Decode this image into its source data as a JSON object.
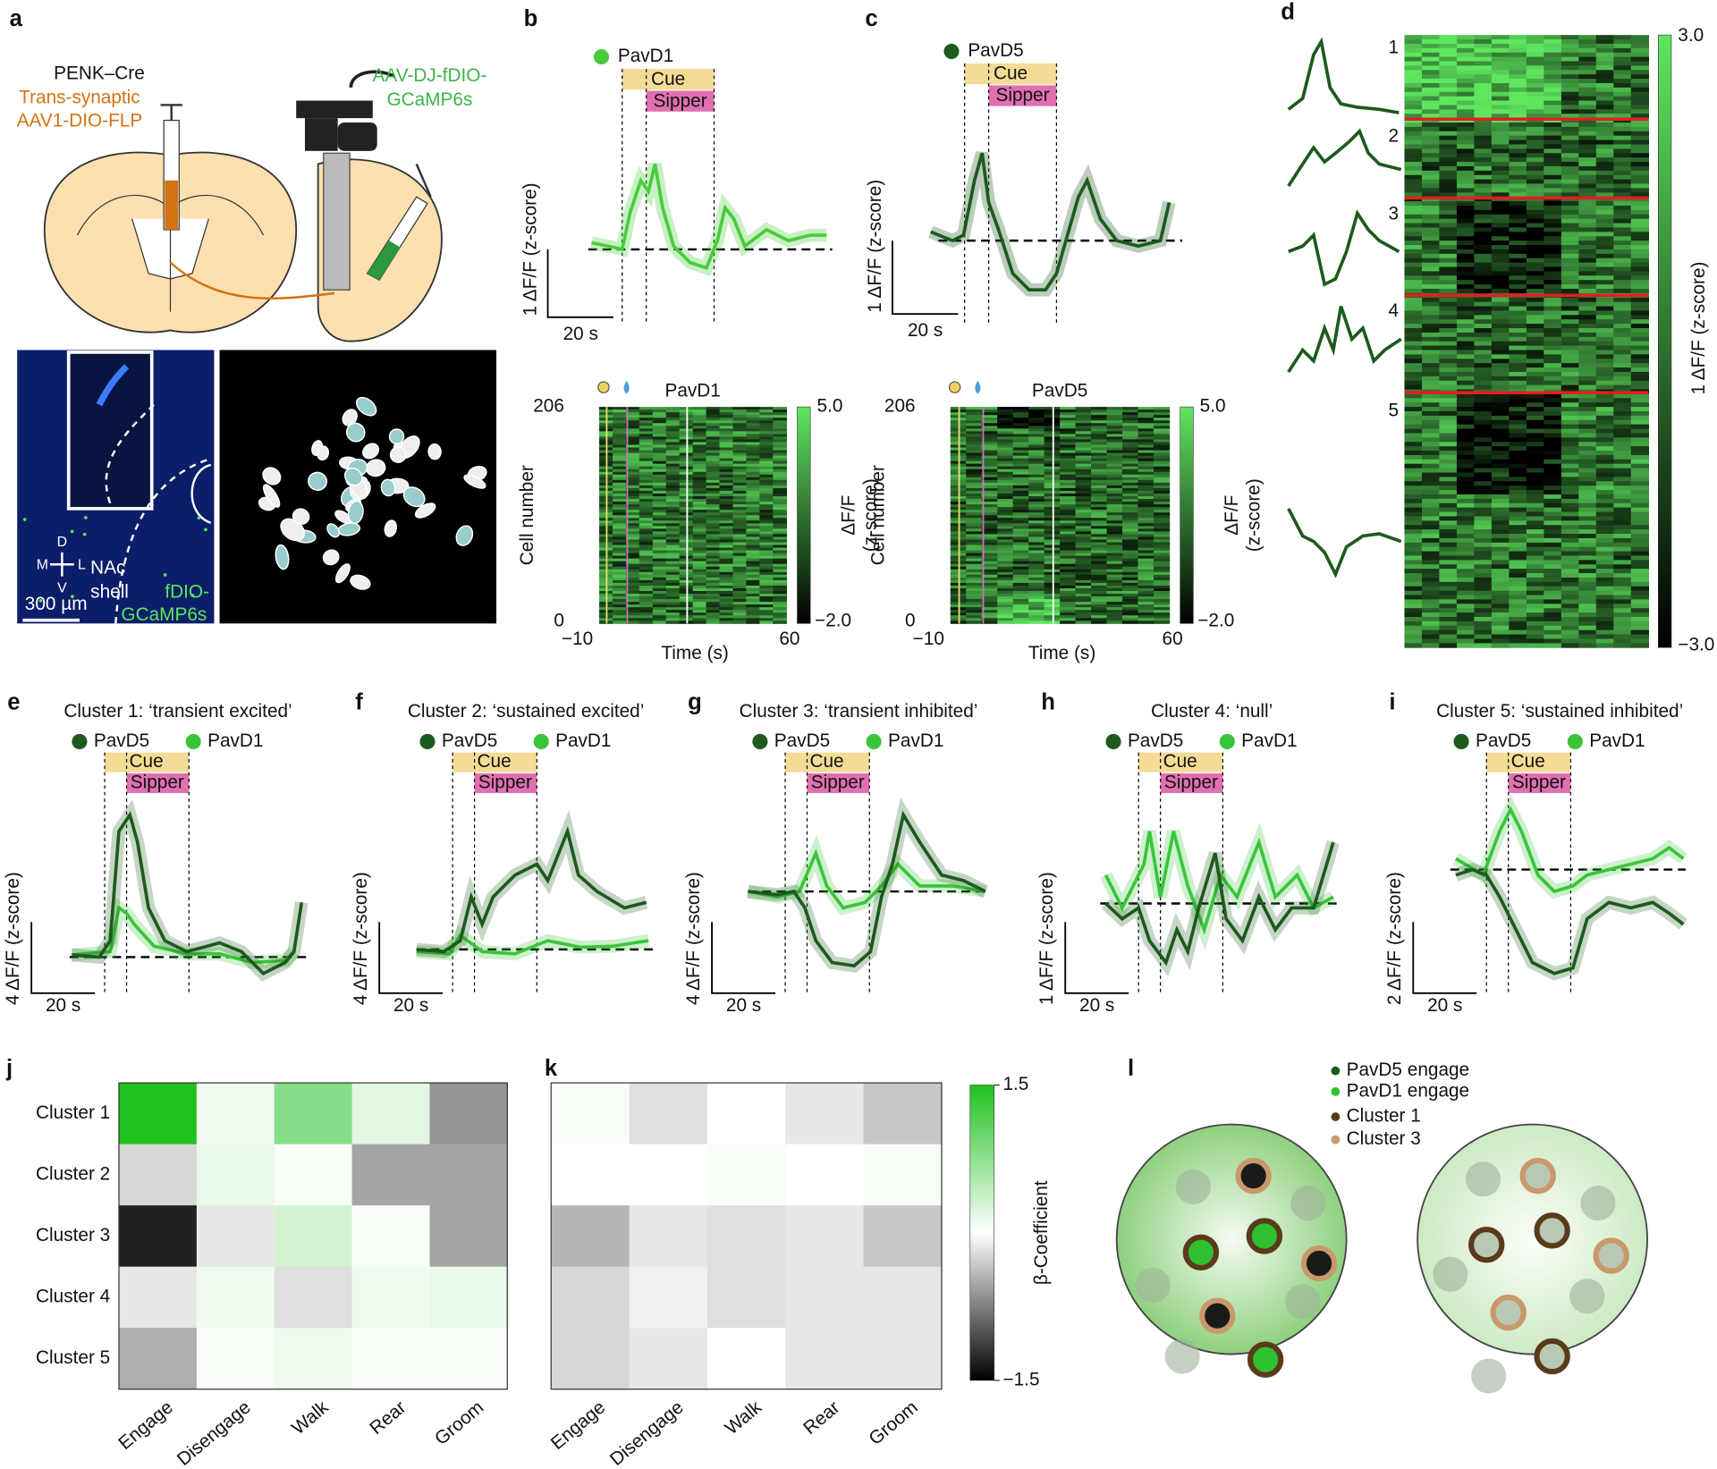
{
  "a": {
    "label": "a",
    "genotype": "PENK–Cre",
    "virus1": [
      "Trans-synaptic",
      "AAV1-DIO-FLP"
    ],
    "virus2": [
      "AAV-DJ-fDIO-",
      "GCaMP6s"
    ],
    "compass": {
      "dorsal": "D",
      "ventral": "V",
      "medial": "M",
      "lateral": "L"
    },
    "region": [
      "NAc",
      "shell"
    ],
    "expression": [
      "fDIO-",
      "GCaMP6s"
    ],
    "scale": "300 µm"
  },
  "b": {
    "label": "b",
    "legend": "PavD1",
    "cue": "Cue",
    "sipper": "Sipper",
    "y_scale": "1 ΔF/F (z-score)",
    "x_scale": "20 s",
    "heatmap": {
      "title": "PavD1",
      "ylabel": "Cell number",
      "yticks": [
        "206",
        "0"
      ],
      "xticks": [
        "−10",
        "60"
      ],
      "xlabel": "Time (s)",
      "colorbar_ticks": [
        "5.0",
        "−2.0"
      ],
      "colorbar_label": [
        "ΔF/F",
        "(z-score)"
      ]
    }
  },
  "c": {
    "label": "c",
    "legend": "PavD5",
    "cue": "Cue",
    "sipper": "Sipper",
    "y_scale": "1 ΔF/F (z-score)",
    "x_scale": "20 s",
    "heatmap": {
      "title": "PavD5",
      "ylabel": "Cell number",
      "yticks": [
        "206",
        "0"
      ],
      "xticks": [
        "−10",
        "60"
      ],
      "xlabel": "Time (s)",
      "colorbar_ticks": [
        "5.0",
        "−2.0"
      ],
      "colorbar_label": [
        "ΔF/F",
        "(z-score)"
      ]
    }
  },
  "d": {
    "label": "d",
    "clusters": [
      "1",
      "2",
      "3",
      "4",
      "5"
    ],
    "colorbar_ticks": [
      "3.0",
      "−3.0"
    ],
    "colorbar_label": "1 ΔF/F (z-score)"
  },
  "clusters": [
    {
      "label": "e",
      "title": "Cluster 1: ‘transient excited’",
      "legend": [
        "PavD5",
        "PavD1"
      ],
      "cue": "Cue",
      "sipper": "Sipper",
      "y_scale": "4 ΔF/F (z-score)",
      "x_scale": "20 s"
    },
    {
      "label": "f",
      "title": "Cluster 2: ‘sustained excited’",
      "legend": [
        "PavD5",
        "PavD1"
      ],
      "cue": "Cue",
      "sipper": "Sipper",
      "y_scale": "4 ΔF/F (z-score)",
      "x_scale": "20 s"
    },
    {
      "label": "g",
      "title": "Cluster 3: ‘transient inhibited’",
      "legend": [
        "PavD5",
        "PavD1"
      ],
      "cue": "Cue",
      "sipper": "Sipper",
      "y_scale": "4 ΔF/F (z-score)",
      "x_scale": "20 s"
    },
    {
      "label": "h",
      "title": "Cluster 4: ‘null’",
      "legend": [
        "PavD5",
        "PavD1"
      ],
      "cue": "Cue",
      "sipper": "Sipper",
      "y_scale": "1 ΔF/F (z-score)",
      "x_scale": "20 s"
    },
    {
      "label": "i",
      "title": "Cluster 5: ‘sustained inhibited’",
      "legend": [
        "PavD5",
        "PavD1"
      ],
      "cue": "Cue",
      "sipper": "Sipper",
      "y_scale": "2 ΔF/F (z-score)",
      "x_scale": "20 s"
    }
  ],
  "j": {
    "label": "j",
    "rows": [
      "Cluster 1",
      "Cluster 2",
      "Cluster 3",
      "Cluster 4",
      "Cluster 5"
    ],
    "columns": [
      "Engage",
      "Disengage",
      "Walk",
      "Rear",
      "Groom"
    ],
    "values": [
      [
        1.5,
        0.1,
        0.8,
        0.2,
        -0.6
      ],
      [
        -0.2,
        0.15,
        0.05,
        -0.5,
        -0.5
      ],
      [
        -1.3,
        -0.1,
        0.3,
        0.05,
        -0.5
      ],
      [
        -0.1,
        0.1,
        -0.15,
        0.1,
        0.15
      ],
      [
        -0.45,
        0.05,
        0.1,
        0.05,
        0.05
      ]
    ]
  },
  "k": {
    "label": "k",
    "columns": [
      "Engage",
      "Disengage",
      "Walk",
      "Rear",
      "Groom"
    ],
    "values": [
      [
        0.05,
        -0.15,
        0,
        -0.1,
        -0.3
      ],
      [
        0,
        0,
        0.05,
        0,
        0.05
      ],
      [
        -0.4,
        -0.1,
        -0.15,
        -0.1,
        -0.3
      ],
      [
        -0.2,
        -0.05,
        -0.15,
        -0.1,
        -0.1
      ],
      [
        -0.2,
        -0.1,
        0,
        -0.1,
        -0.1
      ]
    ]
  },
  "beta_colorbar": {
    "label": "β-Coefficient",
    "clim": [
      -1.5,
      1.5
    ],
    "ticks": [
      1.5,
      {
        "value": -1.5,
        "label": "−1.5"
      }
    ]
  },
  "l": {
    "label": "l",
    "legend": [
      "PavD5 engage",
      "PavD1 engage",
      "Cluster 1",
      "Cluster 3"
    ]
  }
}
